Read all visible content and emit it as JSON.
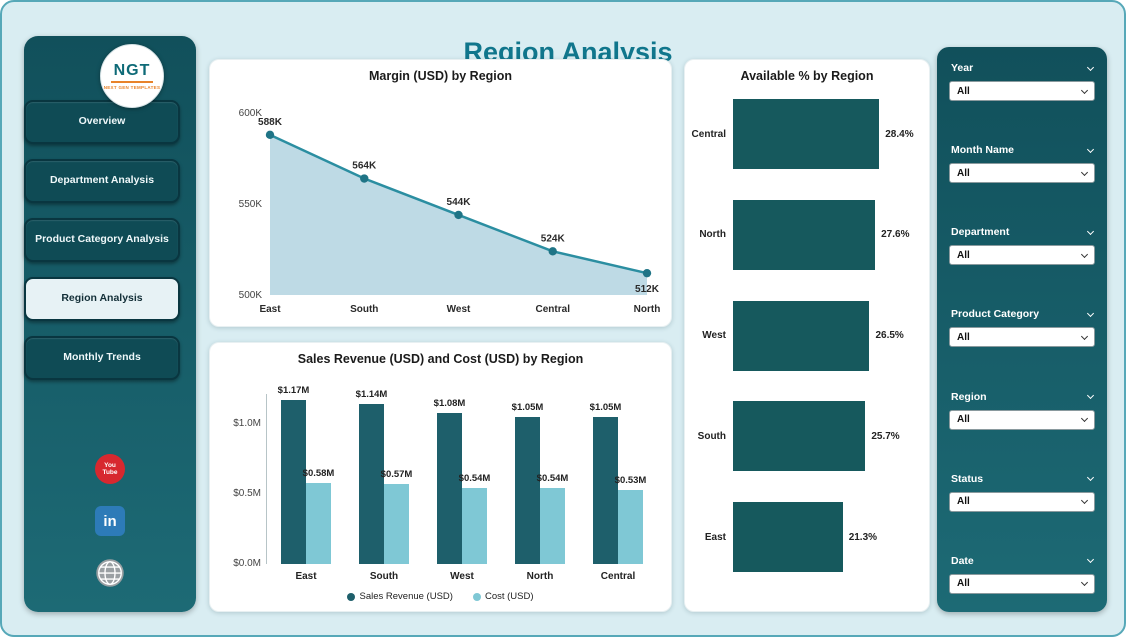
{
  "page": {
    "title": "Region Analysis"
  },
  "sidebar": {
    "logo_text": "NGT",
    "logo_subtext": "NEXT GEN TEMPLATES",
    "items": [
      {
        "label": "Overview",
        "active": false
      },
      {
        "label": "Department Analysis",
        "active": false
      },
      {
        "label": "Product Category Analysis",
        "active": false
      },
      {
        "label": "Region Analysis",
        "active": true
      },
      {
        "label": "Monthly Trends",
        "active": false
      }
    ],
    "social": [
      {
        "name": "youtube",
        "text_top": "You",
        "text_bottom": "Tube"
      },
      {
        "name": "linkedin",
        "text": "in"
      },
      {
        "name": "website"
      }
    ]
  },
  "filters": {
    "items": [
      {
        "label": "Year",
        "value": "All"
      },
      {
        "label": "Month Name",
        "value": "All"
      },
      {
        "label": "Department",
        "value": "All"
      },
      {
        "label": "Product Category",
        "value": "All"
      },
      {
        "label": "Region",
        "value": "All"
      },
      {
        "label": "Status",
        "value": "All"
      },
      {
        "label": "Date",
        "value": "All"
      }
    ]
  },
  "colors": {
    "accent": "#10768c",
    "panel_dark": "#14525d",
    "line": "#2b8ea1",
    "dot": "#1f7486",
    "area_fill": "#b7d6e2",
    "bar_dark": "#1e5f6b",
    "bar_light": "#7fc8d5",
    "hbar": "#16595d"
  },
  "chart_data": [
    {
      "type": "area",
      "title": "Margin (USD) by Region",
      "categories": [
        "East",
        "South",
        "West",
        "Central",
        "North"
      ],
      "values": [
        588,
        564,
        544,
        524,
        512
      ],
      "labels": [
        "588K",
        "564K",
        "544K",
        "524K",
        "512K"
      ],
      "ylim": [
        500,
        600
      ],
      "yticks": [
        {
          "label": "600K",
          "value": 600
        },
        {
          "label": "550K",
          "value": 550
        },
        {
          "label": "500K",
          "value": 500
        }
      ],
      "legend_position": "none",
      "grid": false
    },
    {
      "type": "bar",
      "title": "Sales Revenue (USD) and Cost (USD) by Region",
      "categories": [
        "East",
        "South",
        "West",
        "North",
        "Central"
      ],
      "series": [
        {
          "name": "Sales Revenue (USD)",
          "values": [
            1.17,
            1.14,
            1.08,
            1.05,
            1.05
          ],
          "labels": [
            "$1.17M",
            "$1.14M",
            "$1.08M",
            "$1.05M",
            "$1.05M"
          ],
          "color": "#1e5f6b"
        },
        {
          "name": "Cost (USD)",
          "values": [
            0.58,
            0.57,
            0.54,
            0.54,
            0.53
          ],
          "labels": [
            "$0.58M",
            "$0.57M",
            "$0.54M",
            "$0.54M",
            "$0.53M"
          ],
          "color": "#7fc8d5"
        }
      ],
      "ylim": [
        0,
        1.2
      ],
      "yticks": [
        {
          "label": "$0.0M",
          "value": 0
        },
        {
          "label": "$0.5M",
          "value": 0.5
        },
        {
          "label": "$1.0M",
          "value": 1.0
        }
      ],
      "legend_position": "bottom",
      "grid": false
    },
    {
      "type": "bar-horizontal",
      "title": "Available % by Region",
      "categories": [
        "Central",
        "North",
        "West",
        "South",
        "East"
      ],
      "values": [
        28.4,
        27.6,
        26.5,
        25.7,
        21.3
      ],
      "labels": [
        "28.4%",
        "27.6%",
        "26.5%",
        "25.7%",
        "21.3%"
      ],
      "xlim": [
        0,
        30
      ],
      "legend_position": "none",
      "grid": false
    }
  ]
}
